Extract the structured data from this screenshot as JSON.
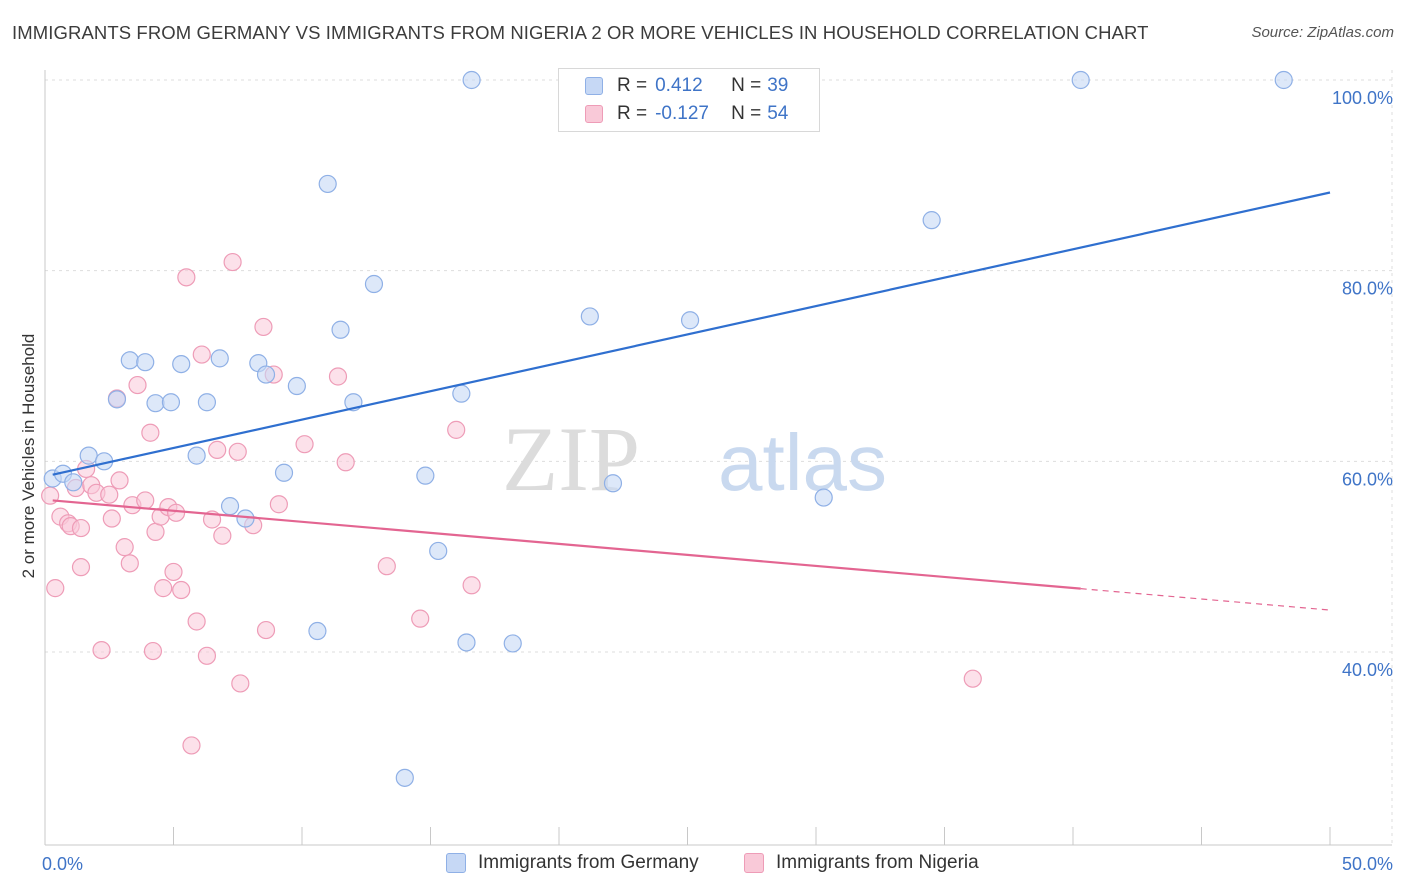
{
  "title": "IMMIGRANTS FROM GERMANY VS IMMIGRANTS FROM NIGERIA 2 OR MORE VEHICLES IN HOUSEHOLD CORRELATION CHART",
  "source": "Source: ZipAtlas.com",
  "watermark": {
    "zip": "ZIP",
    "atlas": "atlas"
  },
  "legend": {
    "rows": [
      {
        "r_label": "R = ",
        "r_value": "0.412",
        "n_label": "N = ",
        "n_value": "39"
      },
      {
        "r_label": "R = ",
        "r_value": "-0.127",
        "n_label": "N = ",
        "n_value": "54"
      }
    ]
  },
  "bottom_legend": [
    "Immigrants from Germany",
    "Immigrants from Nigeria"
  ],
  "colors": {
    "germany_fill": "#c6d8f5",
    "germany_stroke": "#8fb0e6",
    "germany_line": "#2f6fcf",
    "nigeria_fill": "#f9c9d8",
    "nigeria_stroke": "#ee9cb7",
    "nigeria_line": "#e36591",
    "tick_label": "#3f74c7",
    "grid": "#dddddd"
  },
  "chart_data": {
    "type": "scatter",
    "title": "IMMIGRANTS FROM GERMANY VS IMMIGRANTS FROM NIGERIA 2 OR MORE VEHICLES IN HOUSEHOLD CORRELATION CHART",
    "xlabel": "",
    "ylabel": "2 or more Vehicles in Household",
    "xlim": [
      0,
      50
    ],
    "ylim": [
      23,
      104
    ],
    "x_tick_labels": [
      "0.0%",
      "50.0%"
    ],
    "y_ticks": [
      40,
      60,
      80,
      100
    ],
    "y_tick_labels": [
      "40.0%",
      "60.0%",
      "80.0%",
      "100.0%"
    ],
    "grid": true,
    "legend_position": "top-center",
    "series": [
      {
        "name": "Immigrants from Germany",
        "R": 0.412,
        "N": 39,
        "trend": {
          "x": [
            0.3,
            50
          ],
          "y": [
            58.6,
            88.2
          ],
          "dashed_from_x": null
        },
        "points": [
          [
            0.3,
            58.2
          ],
          [
            0.7,
            58.7
          ],
          [
            1.1,
            57.8
          ],
          [
            1.7,
            60.6
          ],
          [
            2.3,
            60.0
          ],
          [
            2.8,
            66.5
          ],
          [
            3.3,
            70.6
          ],
          [
            3.9,
            70.4
          ],
          [
            4.3,
            66.1
          ],
          [
            4.9,
            66.2
          ],
          [
            5.3,
            70.2
          ],
          [
            5.9,
            60.6
          ],
          [
            6.3,
            66.2
          ],
          [
            6.8,
            70.8
          ],
          [
            7.2,
            55.3
          ],
          [
            7.8,
            54.0
          ],
          [
            8.3,
            70.3
          ],
          [
            8.6,
            69.1
          ],
          [
            9.3,
            58.8
          ],
          [
            9.8,
            67.9
          ],
          [
            10.6,
            42.2
          ],
          [
            11.0,
            89.1
          ],
          [
            11.5,
            73.8
          ],
          [
            12.0,
            66.2
          ],
          [
            12.8,
            78.6
          ],
          [
            14.0,
            26.8
          ],
          [
            14.8,
            58.5
          ],
          [
            15.3,
            50.6
          ],
          [
            16.2,
            67.1
          ],
          [
            16.4,
            41.0
          ],
          [
            16.6,
            100.0
          ],
          [
            18.2,
            40.9
          ],
          [
            21.2,
            75.2
          ],
          [
            22.1,
            57.7
          ],
          [
            25.1,
            74.8
          ],
          [
            30.3,
            56.2
          ],
          [
            34.5,
            85.3
          ],
          [
            40.3,
            100.0
          ],
          [
            48.2,
            100.0
          ]
        ]
      },
      {
        "name": "Immigrants from Nigeria",
        "R": -0.127,
        "N": 54,
        "trend": {
          "x": [
            0.3,
            50
          ],
          "y": [
            55.9,
            44.4
          ],
          "dashed_from_x": 40.3
        },
        "points": [
          [
            0.2,
            56.4
          ],
          [
            0.4,
            46.7
          ],
          [
            0.6,
            54.2
          ],
          [
            0.9,
            53.5
          ],
          [
            1.0,
            53.2
          ],
          [
            1.2,
            57.2
          ],
          [
            1.4,
            53.0
          ],
          [
            1.4,
            48.9
          ],
          [
            1.6,
            59.2
          ],
          [
            1.8,
            57.5
          ],
          [
            2.0,
            56.7
          ],
          [
            2.2,
            40.2
          ],
          [
            2.5,
            56.5
          ],
          [
            2.6,
            54.0
          ],
          [
            2.8,
            66.6
          ],
          [
            2.9,
            58.0
          ],
          [
            3.1,
            51.0
          ],
          [
            3.3,
            49.3
          ],
          [
            3.4,
            55.4
          ],
          [
            3.6,
            68.0
          ],
          [
            3.9,
            55.9
          ],
          [
            4.1,
            63.0
          ],
          [
            4.2,
            40.1
          ],
          [
            4.3,
            52.6
          ],
          [
            4.5,
            54.2
          ],
          [
            4.6,
            46.7
          ],
          [
            4.8,
            55.2
          ],
          [
            5.0,
            48.4
          ],
          [
            5.1,
            54.6
          ],
          [
            5.3,
            46.5
          ],
          [
            5.5,
            79.3
          ],
          [
            5.7,
            30.2
          ],
          [
            5.9,
            43.2
          ],
          [
            6.1,
            71.2
          ],
          [
            6.3,
            39.6
          ],
          [
            6.5,
            53.9
          ],
          [
            6.7,
            61.2
          ],
          [
            6.9,
            52.2
          ],
          [
            7.3,
            80.9
          ],
          [
            7.5,
            61.0
          ],
          [
            7.6,
            36.7
          ],
          [
            8.1,
            53.3
          ],
          [
            8.5,
            74.1
          ],
          [
            8.6,
            42.3
          ],
          [
            8.9,
            69.1
          ],
          [
            9.1,
            55.5
          ],
          [
            10.1,
            61.8
          ],
          [
            11.4,
            68.9
          ],
          [
            11.7,
            59.9
          ],
          [
            13.3,
            49.0
          ],
          [
            14.6,
            43.5
          ],
          [
            16.0,
            63.3
          ],
          [
            16.6,
            47.0
          ],
          [
            36.1,
            37.2
          ]
        ]
      }
    ]
  }
}
